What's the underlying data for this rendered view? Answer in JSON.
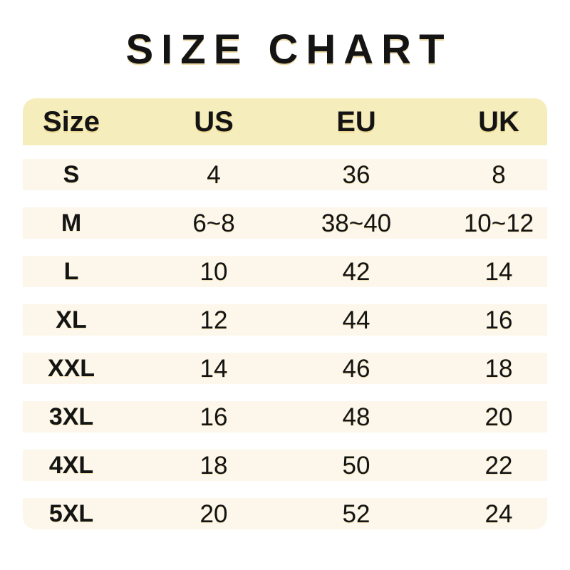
{
  "chart_data": {
    "type": "table",
    "title": "SIZE CHART",
    "columns": [
      "Size",
      "US",
      "EU",
      "UK"
    ],
    "rows": [
      [
        "S",
        "4",
        "36",
        "8"
      ],
      [
        "M",
        "6~8",
        "38~40",
        "10~12"
      ],
      [
        "L",
        "10",
        "42",
        "14"
      ],
      [
        "XL",
        "12",
        "44",
        "16"
      ],
      [
        "XXL",
        "14",
        "46",
        "18"
      ],
      [
        "3XL",
        "16",
        "48",
        "20"
      ],
      [
        "4XL",
        "18",
        "50",
        "22"
      ],
      [
        "5XL",
        "20",
        "52",
        "24"
      ]
    ],
    "layout": {
      "legend": "none",
      "grid": "off",
      "header_position": "top",
      "column_alignment": "center"
    }
  },
  "colors": {
    "page_bg": "#FFFFFF",
    "header_bg": "#F6EDBD",
    "row_bg": "#FCF7EA",
    "gap_bg": "#FFFFFF",
    "text": "#141414",
    "shadow_accent": "#D6AE3C"
  }
}
